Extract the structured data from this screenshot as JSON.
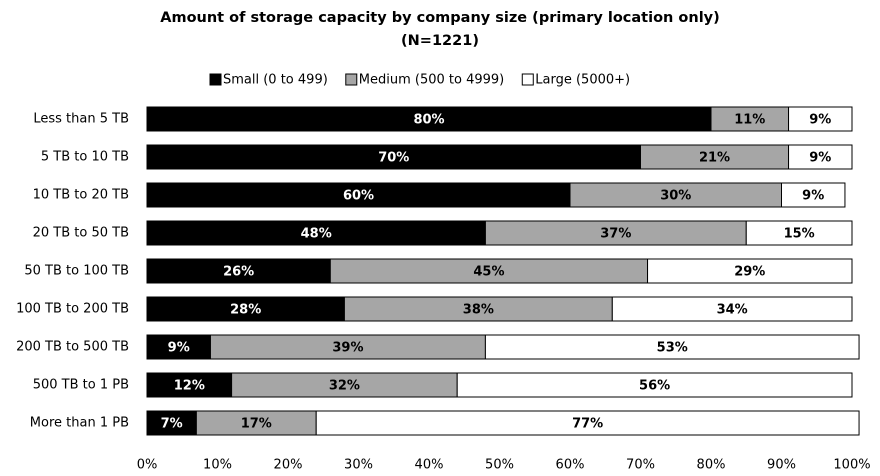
{
  "chart_data": {
    "type": "stacked_bar_horizontal",
    "title": "Amount of storage capacity by company size (primary location only)",
    "subtitle": "(N=1221)",
    "categories": [
      "Less than 5 TB",
      "5 TB to 10 TB",
      "10 TB to 20 TB",
      "20 TB to 50 TB",
      "50 TB to 100 TB",
      "100 TB to 200 TB",
      "200 TB to 500 TB",
      "500 TB to 1 PB",
      "More than 1 PB"
    ],
    "series": [
      {
        "name": "Small (0 to 499)",
        "color": "#000000",
        "values": [
          80,
          70,
          60,
          48,
          26,
          28,
          9,
          12,
          7
        ],
        "value_labels": [
          "80%",
          "70%",
          "60%",
          "48%",
          "26%",
          "28%",
          "9%",
          "12%",
          "7%"
        ]
      },
      {
        "name": "Medium (500 to 4999)",
        "color": "#a6a6a6",
        "values": [
          11,
          21,
          30,
          37,
          45,
          38,
          39,
          32,
          17
        ],
        "value_labels": [
          "11%",
          "21%",
          "30%",
          "37%",
          "45%",
          "38%",
          "39%",
          "32%",
          "17%"
        ]
      },
      {
        "name": "Large (5000+)",
        "color": "#ffffff",
        "values": [
          9,
          9,
          9,
          15,
          29,
          34,
          53,
          56,
          77
        ],
        "value_labels": [
          "9%",
          "9%",
          "9%",
          "15%",
          "29%",
          "34%",
          "53%",
          "56%",
          "77%"
        ]
      }
    ],
    "xlim": [
      0,
      100
    ],
    "xticks": [
      {
        "value": 0,
        "label": "0%"
      },
      {
        "value": 10,
        "label": "10%"
      },
      {
        "value": 20,
        "label": "20%"
      },
      {
        "value": 30,
        "label": "30%"
      },
      {
        "value": 40,
        "label": "40%"
      },
      {
        "value": 50,
        "label": "50%"
      },
      {
        "value": 60,
        "label": "60%"
      },
      {
        "value": 70,
        "label": "70%"
      },
      {
        "value": 80,
        "label": "80%"
      },
      {
        "value": 90,
        "label": "90%"
      },
      {
        "value": 100,
        "label": "100%"
      }
    ],
    "legend": "top",
    "grid": false
  }
}
